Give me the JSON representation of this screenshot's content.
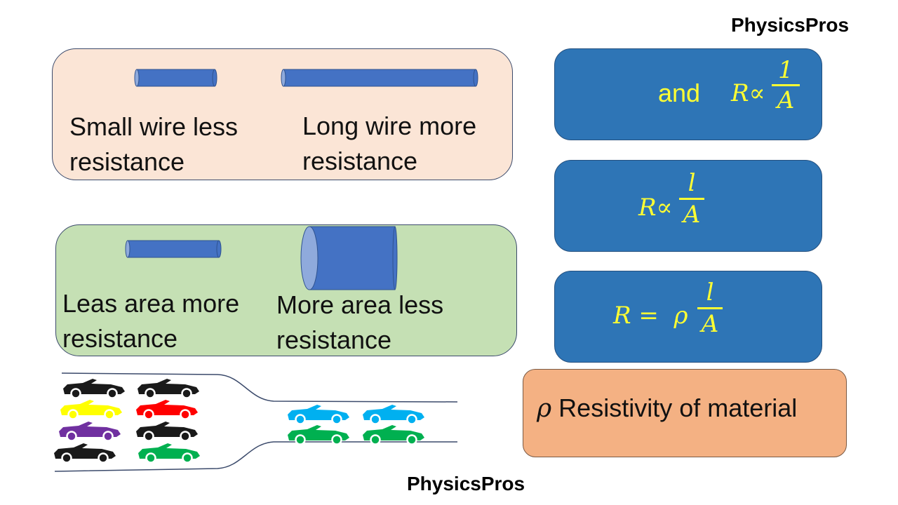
{
  "brand": {
    "top": "PhysicsPros",
    "bottom": "PhysicsPros"
  },
  "wire_length": {
    "short_caption": "Small wire less resistance",
    "short_line1": "Small wire less",
    "short_line2": "resistance",
    "long_line1": "Long wire more",
    "long_line2": "resistance"
  },
  "wire_area": {
    "thin_line1": "Leas area more",
    "thin_line2": "resistance",
    "thick_line1": "More area less",
    "thick_line2": "resistance"
  },
  "equations": {
    "eq1": {
      "and": "and",
      "lhs": "R∝",
      "num": "1",
      "den": "A"
    },
    "eq2": {
      "lhs": "R∝",
      "num": "l",
      "den": "A"
    },
    "eq3": {
      "lhs": "R =  ρ",
      "num": "l",
      "den": "A"
    }
  },
  "resistivity": {
    "symbol": "ρ",
    "text": " Resistivity of material"
  },
  "colors": {
    "wire": "#4472c4",
    "panel_peach": "#fbe5d6",
    "panel_green": "#c5e0b4",
    "eq_box": "#2e75b6",
    "eq_text": "#ffff33",
    "resistivity_box": "#f4b183"
  },
  "cars_left": [
    [
      "#1a1a1a",
      "#1a1a1a"
    ],
    [
      "#ffff00",
      "#ff0000"
    ],
    [
      "#7030a0",
      "#1a1a1a"
    ],
    [
      "#1a1a1a",
      "#00b050"
    ]
  ],
  "cars_right": [
    [
      "#00b0f0",
      "#00b0f0"
    ],
    [
      "#00b050",
      "#00b050"
    ]
  ]
}
